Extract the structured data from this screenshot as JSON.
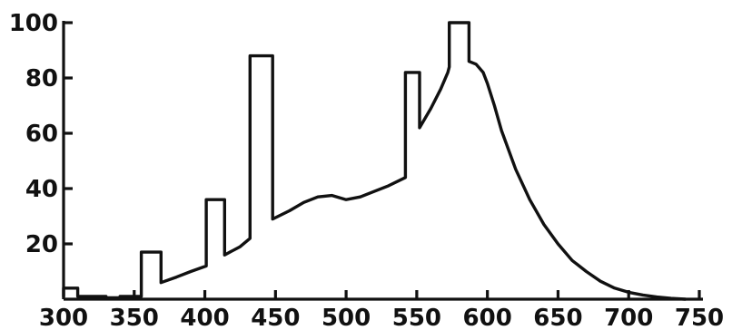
{
  "chart_data": {
    "type": "line",
    "title": "",
    "xlabel": "",
    "ylabel": "",
    "xlim": [
      300,
      750
    ],
    "ylim": [
      0,
      100
    ],
    "xticks": [
      300,
      350,
      400,
      450,
      500,
      550,
      600,
      650,
      700,
      750
    ],
    "yticks": [
      20,
      40,
      60,
      80,
      100
    ],
    "x_tick_labels": [
      "300",
      "350",
      "400",
      "450",
      "500",
      "550",
      "600",
      "650",
      "700",
      "750"
    ],
    "y_tick_labels": [
      "20",
      "40",
      "60",
      "80",
      "100"
    ],
    "grid": false,
    "line_color": "#111111",
    "series": [
      {
        "x": [
          300,
          300,
          310,
          310,
          320,
          330,
          330,
          340,
          340,
          355,
          355,
          369,
          369,
          380,
          390,
          401,
          401,
          414,
          414,
          425,
          432,
          432,
          448,
          448,
          460,
          470,
          480,
          490,
          500,
          510,
          520,
          530,
          542,
          542,
          552,
          552,
          560,
          567,
          572,
          573,
          573,
          587,
          587,
          592,
          597,
          600,
          605,
          610,
          620,
          630,
          640,
          650,
          660,
          670,
          680,
          690,
          700,
          710,
          720,
          730,
          740
        ],
        "y": [
          1,
          4,
          4,
          1,
          1,
          1,
          0.5,
          0.5,
          1,
          1,
          17,
          17,
          6,
          8,
          10,
          12,
          36,
          36,
          16,
          19,
          22,
          88,
          88,
          29,
          32,
          35,
          37,
          37.5,
          36,
          37,
          39,
          41,
          44,
          82,
          82,
          62,
          69,
          76,
          82,
          84,
          100,
          100,
          86,
          85,
          82,
          78,
          70,
          61,
          47,
          36,
          27,
          20,
          14,
          10,
          6.5,
          4,
          2.5,
          1.5,
          0.8,
          0.3,
          0
        ]
      }
    ]
  }
}
